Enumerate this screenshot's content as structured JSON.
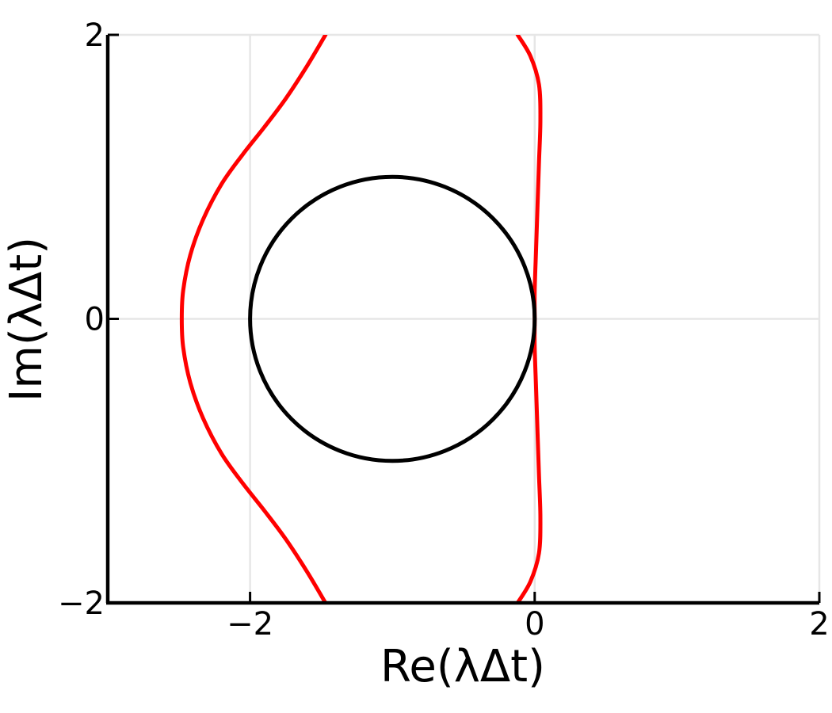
{
  "chart_data": {
    "type": "line",
    "title": "",
    "xlabel": "Re(λΔt)",
    "ylabel": "Im(λΔt)",
    "xlim": [
      -3,
      2
    ],
    "ylim": [
      -2,
      2
    ],
    "xticks": [
      {
        "value": -2,
        "label": "−2"
      },
      {
        "value": 0,
        "label": "0"
      },
      {
        "value": 2,
        "label": "2"
      }
    ],
    "yticks": [
      {
        "value": -2,
        "label": "−2"
      },
      {
        "value": 0,
        "label": "0"
      },
      {
        "value": 2,
        "label": "2"
      }
    ],
    "grid": true,
    "legend": "none",
    "series": [
      {
        "color": "#ff0000",
        "points": [
          [
            -1.47,
            2.0
          ],
          [
            -1.6,
            1.78
          ],
          [
            -1.75,
            1.55
          ],
          [
            -1.9,
            1.35
          ],
          [
            -2.05,
            1.16
          ],
          [
            -2.2,
            0.95
          ],
          [
            -2.33,
            0.7
          ],
          [
            -2.42,
            0.45
          ],
          [
            -2.47,
            0.2
          ],
          [
            -2.48,
            0.0
          ],
          [
            -2.47,
            -0.2
          ],
          [
            -2.42,
            -0.45
          ],
          [
            -2.33,
            -0.7
          ],
          [
            -2.2,
            -0.95
          ],
          [
            -2.05,
            -1.16
          ],
          [
            -1.9,
            -1.35
          ],
          [
            -1.75,
            -1.55
          ],
          [
            -1.6,
            -1.78
          ],
          [
            -1.47,
            -2.0
          ]
        ]
      },
      {
        "color": "#ff0000",
        "points": [
          [
            -0.12,
            2.0
          ],
          [
            -0.03,
            1.85
          ],
          [
            0.03,
            1.65
          ],
          [
            0.04,
            1.4
          ],
          [
            0.03,
            1.1
          ],
          [
            0.02,
            0.8
          ],
          [
            0.01,
            0.5
          ],
          [
            0.0,
            0.2
          ],
          [
            0.0,
            0.0
          ],
          [
            0.0,
            -0.2
          ],
          [
            0.01,
            -0.5
          ],
          [
            0.02,
            -0.8
          ],
          [
            0.03,
            -1.1
          ],
          [
            0.04,
            -1.4
          ],
          [
            0.03,
            -1.65
          ],
          [
            -0.03,
            -1.85
          ],
          [
            -0.12,
            -2.0
          ]
        ]
      },
      {
        "color": "#000000",
        "circle": {
          "center": [
            -1,
            0
          ],
          "radius": 1
        }
      }
    ]
  }
}
